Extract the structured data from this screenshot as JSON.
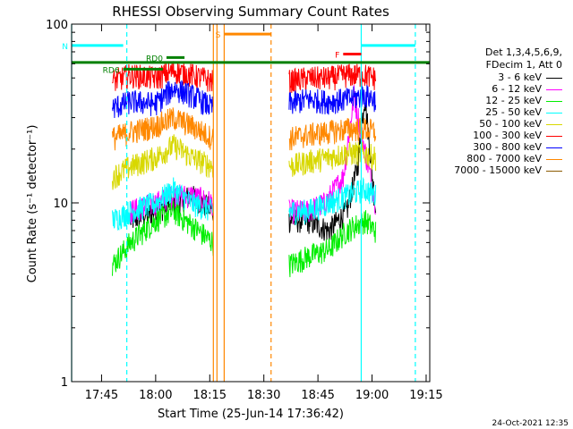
{
  "chart_data": {
    "type": "line",
    "title": "RHESSI Observing Summary Count Rates",
    "xlabel": "Start Time (25-Jun-14 17:36:42)",
    "ylabel": "Count Rate (s⁻¹ detector⁻¹)",
    "yscale": "log",
    "ylim": [
      1,
      100
    ],
    "xlim": [
      "17:36:42",
      "19:16:00"
    ],
    "x_ticks": [
      "17:45",
      "18:00",
      "18:15",
      "18:30",
      "18:45",
      "19:00",
      "19:15"
    ],
    "y_ticks": [
      "1",
      "10",
      "100"
    ],
    "timestamp": "24-Oct-2021 12:35",
    "legend_header": [
      "Det 1,3,4,5,6,9,",
      "FDecim 1, Att 0"
    ],
    "series": [
      {
        "name": "3 - 6 keV",
        "color": "#000000",
        "segments": [
          {
            "x": [
              "17:53",
              "18:00",
              "18:05",
              "18:10",
              "18:16"
            ],
            "y": [
              8,
              9,
              10,
              11,
              9
            ]
          },
          {
            "x": [
              "18:37",
              "18:42",
              "18:48",
              "18:53",
              "18:56",
              "18:58",
              "19:01"
            ],
            "y": [
              8,
              8,
              7,
              9,
              16,
              40,
              9
            ]
          }
        ]
      },
      {
        "name": "6 - 12 keV",
        "color": "#ff00ff",
        "segments": [
          {
            "x": [
              "17:53",
              "18:00",
              "18:05",
              "18:10",
              "18:16"
            ],
            "y": [
              9,
              10,
              11,
              11,
              10
            ]
          },
          {
            "x": [
              "18:37",
              "18:42",
              "18:47",
              "18:52",
              "18:55",
              "18:57",
              "19:01"
            ],
            "y": [
              9,
              9,
              10,
              14,
              40,
              25,
              10
            ]
          }
        ]
      },
      {
        "name": "12 - 25 keV",
        "color": "#00ee00",
        "segments": [
          {
            "x": [
              "17:48",
              "17:53",
              "18:00",
              "18:05",
              "18:10",
              "18:16"
            ],
            "y": [
              4.5,
              6,
              8,
              9,
              7.5,
              6
            ]
          },
          {
            "x": [
              "18:37",
              "18:42",
              "18:48",
              "18:53",
              "18:58",
              "19:01"
            ],
            "y": [
              4.5,
              5,
              5.5,
              7,
              8,
              7
            ]
          }
        ]
      },
      {
        "name": "25 - 50 keV",
        "color": "#00ffff",
        "segments": [
          {
            "x": [
              "17:48",
              "17:53",
              "18:00",
              "18:05",
              "18:10",
              "18:16"
            ],
            "y": [
              8,
              9,
              10,
              12,
              10,
              9
            ]
          },
          {
            "x": [
              "18:37",
              "18:42",
              "18:48",
              "18:53",
              "18:58",
              "19:01"
            ],
            "y": [
              9,
              9,
              10,
              11,
              12,
              11
            ]
          }
        ]
      },
      {
        "name": "50 - 100 keV",
        "color": "#d8d800",
        "segments": [
          {
            "x": [
              "17:48",
              "17:53",
              "18:00",
              "18:05",
              "18:10",
              "18:16"
            ],
            "y": [
              14,
              16,
              18,
              21,
              18,
              16
            ]
          },
          {
            "x": [
              "18:37",
              "18:42",
              "18:48",
              "18:53",
              "18:58",
              "19:01"
            ],
            "y": [
              16,
              17,
              18,
              19,
              19,
              18
            ]
          }
        ]
      },
      {
        "name": "100 - 300 keV",
        "color": "#ff0000",
        "segments": [
          {
            "x": [
              "17:48",
              "17:53",
              "18:00",
              "18:05",
              "18:10",
              "18:16"
            ],
            "y": [
              48,
              52,
              50,
              55,
              52,
              48
            ]
          },
          {
            "x": [
              "18:37",
              "18:42",
              "18:48",
              "18:53",
              "18:58",
              "19:01"
            ],
            "y": [
              48,
              50,
              50,
              52,
              52,
              50
            ]
          }
        ]
      },
      {
        "name": "300 - 800 keV",
        "color": "#0000ff",
        "segments": [
          {
            "x": [
              "17:48",
              "17:53",
              "18:00",
              "18:05",
              "18:10",
              "18:16"
            ],
            "y": [
              34,
              37,
              36,
              44,
              40,
              34
            ]
          },
          {
            "x": [
              "18:37",
              "18:42",
              "18:48",
              "18:53",
              "18:58",
              "19:01"
            ],
            "y": [
              36,
              38,
              37,
              38,
              40,
              38
            ]
          }
        ]
      },
      {
        "name": "800 - 7000 keV",
        "color": "#ff8800",
        "segments": [
          {
            "x": [
              "17:48",
              "17:53",
              "18:00",
              "18:05",
              "18:10",
              "18:16"
            ],
            "y": [
              23,
              25,
              27,
              30,
              27,
              23
            ]
          },
          {
            "x": [
              "18:37",
              "18:42",
              "18:48",
              "18:53",
              "18:58",
              "19:01"
            ],
            "y": [
              23,
              24,
              25,
              26,
              26,
              25
            ]
          }
        ]
      },
      {
        "name": "7000 - 15000 keV",
        "color": "#8b5a00",
        "segments": []
      }
    ],
    "markers": [
      {
        "label": "N",
        "color": "#00ffff",
        "start": "17:36:42",
        "end": "17:51",
        "y": 76
      },
      {
        "label": "",
        "color": "#00ffff",
        "start": "18:57",
        "end": "19:12",
        "y": 76
      },
      {
        "label": "S",
        "color": "#ff8800",
        "start": "18:19",
        "end": "18:32",
        "y": 88
      },
      {
        "label": "F",
        "color": "#ff0000",
        "start": "18:52",
        "end": "18:57",
        "y": 68
      },
      {
        "label": "RD0",
        "color": "#008000",
        "start": "18:03",
        "end": "18:08",
        "y": 65
      },
      {
        "label": "RD6",
        "color": "#008000",
        "start": "17:51",
        "end": "18:02",
        "y": 56
      }
    ],
    "saa_line": {
      "color": "#008000",
      "y": 61
    },
    "vlines": [
      {
        "t": "17:36:42",
        "color": "#00ffff",
        "dash": false
      },
      {
        "t": "17:52",
        "color": "#00ffff",
        "dash": true
      },
      {
        "t": "18:16",
        "color": "#ff8800",
        "dash": false
      },
      {
        "t": "18:17",
        "color": "#ff8800",
        "dash": false
      },
      {
        "t": "18:19",
        "color": "#ff8800",
        "dash": false
      },
      {
        "t": "18:32",
        "color": "#ff8800",
        "dash": true
      },
      {
        "t": "18:57",
        "color": "#00ffff",
        "dash": false
      },
      {
        "t": "19:12",
        "color": "#00ffff",
        "dash": true
      }
    ]
  }
}
